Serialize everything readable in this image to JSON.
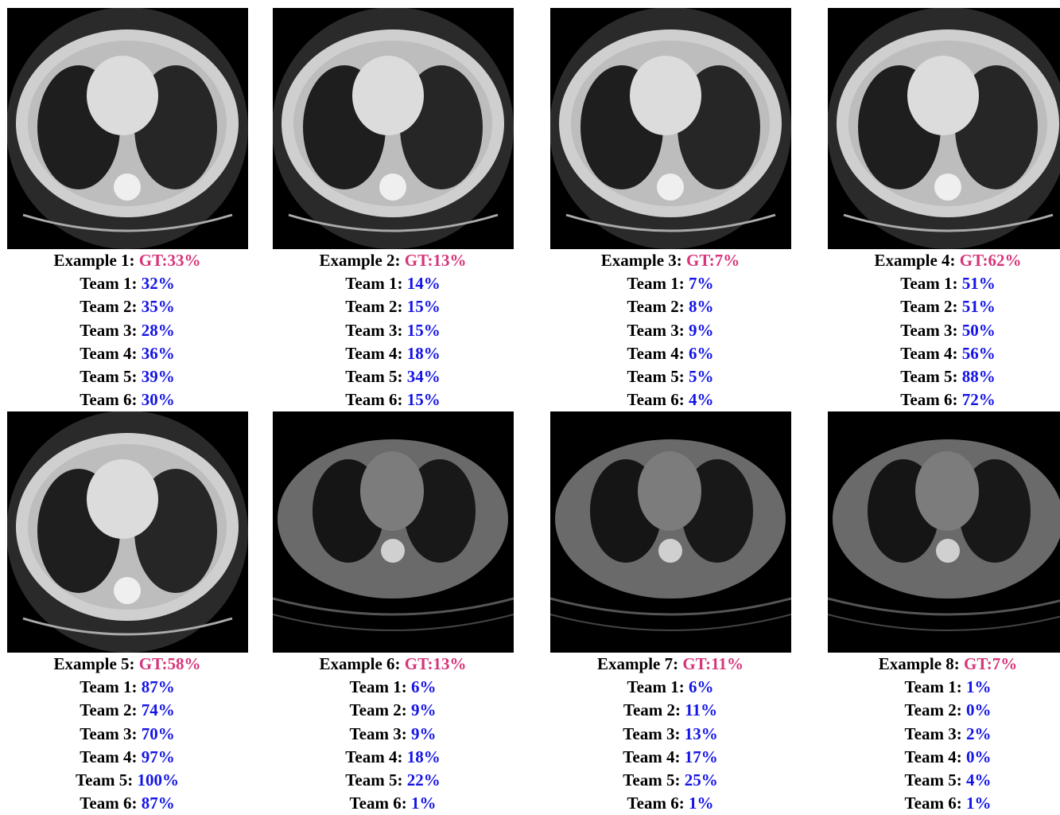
{
  "examples": [
    {
      "label": "Example 1:",
      "gt": "GT:33%",
      "teams": [
        {
          "label": "Team 1:",
          "value": "32%"
        },
        {
          "label": "Team 2:",
          "value": "35%"
        },
        {
          "label": "Team 3:",
          "value": "28%"
        },
        {
          "label": "Team 4:",
          "value": "36%"
        },
        {
          "label": "Team 5:",
          "value": "39%"
        },
        {
          "label": "Team 6:",
          "value": "30%"
        }
      ]
    },
    {
      "label": "Example 2:",
      "gt": "GT:13%",
      "teams": [
        {
          "label": "Team 1:",
          "value": "14%"
        },
        {
          "label": "Team 2:",
          "value": "15%"
        },
        {
          "label": "Team 3:",
          "value": "15%"
        },
        {
          "label": "Team 4:",
          "value": "18%"
        },
        {
          "label": "Team 5:",
          "value": "34%"
        },
        {
          "label": "Team 6:",
          "value": "15%"
        }
      ]
    },
    {
      "label": "Example 3:",
      "gt": "GT:7%",
      "teams": [
        {
          "label": "Team 1:",
          "value": "7%"
        },
        {
          "label": "Team 2:",
          "value": "8%"
        },
        {
          "label": "Team 3:",
          "value": "9%"
        },
        {
          "label": "Team 4:",
          "value": "6%"
        },
        {
          "label": "Team 5:",
          "value": "5%"
        },
        {
          "label": "Team 6:",
          "value": "4%"
        }
      ]
    },
    {
      "label": "Example 4:",
      "gt": "GT:62%",
      "teams": [
        {
          "label": "Team 1:",
          "value": "51%"
        },
        {
          "label": "Team 2:",
          "value": "51%"
        },
        {
          "label": "Team 3:",
          "value": "50%"
        },
        {
          "label": "Team 4:",
          "value": "56%"
        },
        {
          "label": "Team 5:",
          "value": "88%"
        },
        {
          "label": "Team 6:",
          "value": "72%"
        }
      ]
    },
    {
      "label": "Example 5:",
      "gt": "GT:58%",
      "teams": [
        {
          "label": "Team 1:",
          "value": "87%"
        },
        {
          "label": "Team 2:",
          "value": "74%"
        },
        {
          "label": "Team 3:",
          "value": "70%"
        },
        {
          "label": "Team 4:",
          "value": "97%"
        },
        {
          "label": "Team 5:",
          "value": "100%"
        },
        {
          "label": "Team 6:",
          "value": "87%"
        }
      ]
    },
    {
      "label": "Example 6:",
      "gt": "GT:13%",
      "teams": [
        {
          "label": "Team 1:",
          "value": "6%"
        },
        {
          "label": "Team 2:",
          "value": "9%"
        },
        {
          "label": "Team 3:",
          "value": "9%"
        },
        {
          "label": "Team 4:",
          "value": "18%"
        },
        {
          "label": "Team 5:",
          "value": "22%"
        },
        {
          "label": "Team 6:",
          "value": "1%"
        }
      ]
    },
    {
      "label": "Example 7:",
      "gt": "GT:11%",
      "teams": [
        {
          "label": "Team 1:",
          "value": "6%"
        },
        {
          "label": "Team 2:",
          "value": "11%"
        },
        {
          "label": "Team 3:",
          "value": "13%"
        },
        {
          "label": "Team 4:",
          "value": "17%"
        },
        {
          "label": "Team 5:",
          "value": "25%"
        },
        {
          "label": "Team 6:",
          "value": "1%"
        }
      ]
    },
    {
      "label": "Example 8:",
      "gt": "GT:7%",
      "teams": [
        {
          "label": "Team 1:",
          "value": "1%"
        },
        {
          "label": "Team 2:",
          "value": "0%"
        },
        {
          "label": "Team 3:",
          "value": "2%"
        },
        {
          "label": "Team 4:",
          "value": "0%"
        },
        {
          "label": "Team 5:",
          "value": "4%"
        },
        {
          "label": "Team 6:",
          "value": "1%"
        }
      ]
    }
  ]
}
